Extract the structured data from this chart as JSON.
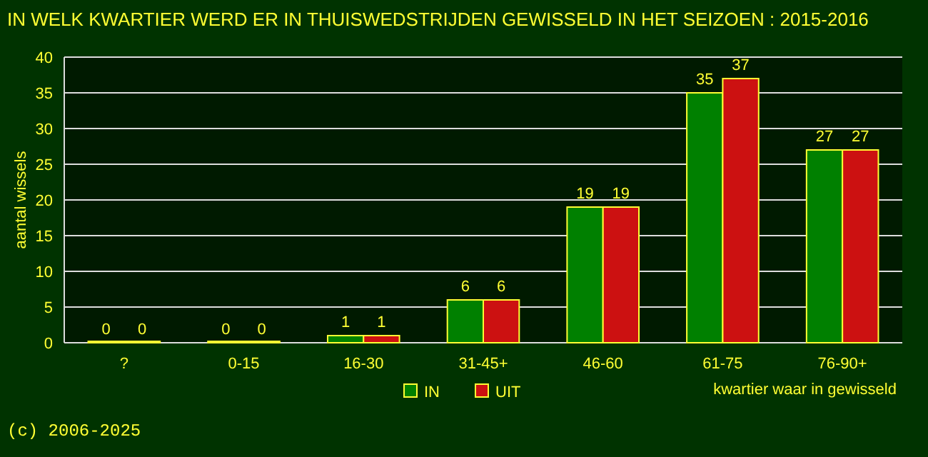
{
  "chart_data": {
    "type": "bar",
    "title": "IN WELK KWARTIER WERD ER IN THUISWEDSTRIJDEN GEWISSELD IN HET SEIZOEN : 2015-2016",
    "xlabel": "kwartier waar in gewisseld",
    "ylabel": "aantal wissels",
    "annotations": [
      "(c) 2006-2025"
    ],
    "categories": [
      "?",
      "0-15",
      "16-30",
      "31-45+",
      "46-60",
      "61-75",
      "76-90+"
    ],
    "series": [
      {
        "name": "IN",
        "color": "#008000",
        "values": [
          0,
          0,
          1,
          6,
          19,
          35,
          27
        ]
      },
      {
        "name": "UIT",
        "color": "#cc1111",
        "values": [
          0,
          0,
          1,
          6,
          19,
          37,
          27
        ]
      }
    ],
    "ylim": [
      0,
      40
    ],
    "yticks": [
      0,
      5,
      10,
      15,
      20,
      25,
      30,
      35,
      40
    ],
    "grid": "y",
    "legend": "bottom",
    "data_labels": true
  }
}
